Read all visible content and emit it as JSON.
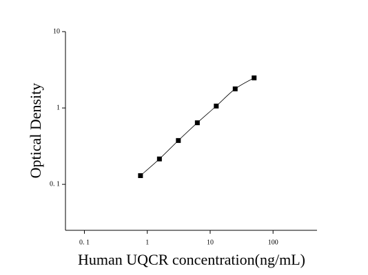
{
  "chart_data": {
    "type": "scatter",
    "x_label": "Human UQCR concentration(ng/mL)",
    "y_label": "Optical Density",
    "log_x": true,
    "log_y": true,
    "xlim": [
      0.05,
      500
    ],
    "ylim": [
      0.025,
      10
    ],
    "xticks": [
      {
        "value": 0.1,
        "label": "0. 1"
      },
      1,
      10,
      100
    ],
    "yticks": [
      {
        "value": 0.1,
        "label": "0. 1"
      },
      1,
      10
    ],
    "series": [
      {
        "color": "#000000",
        "x": [
          0.78,
          1.56,
          3.12,
          6.25,
          12.5,
          25,
          50
        ],
        "values": [
          0.13,
          0.215,
          0.375,
          0.64,
          1.06,
          1.78,
          2.48
        ]
      }
    ]
  }
}
